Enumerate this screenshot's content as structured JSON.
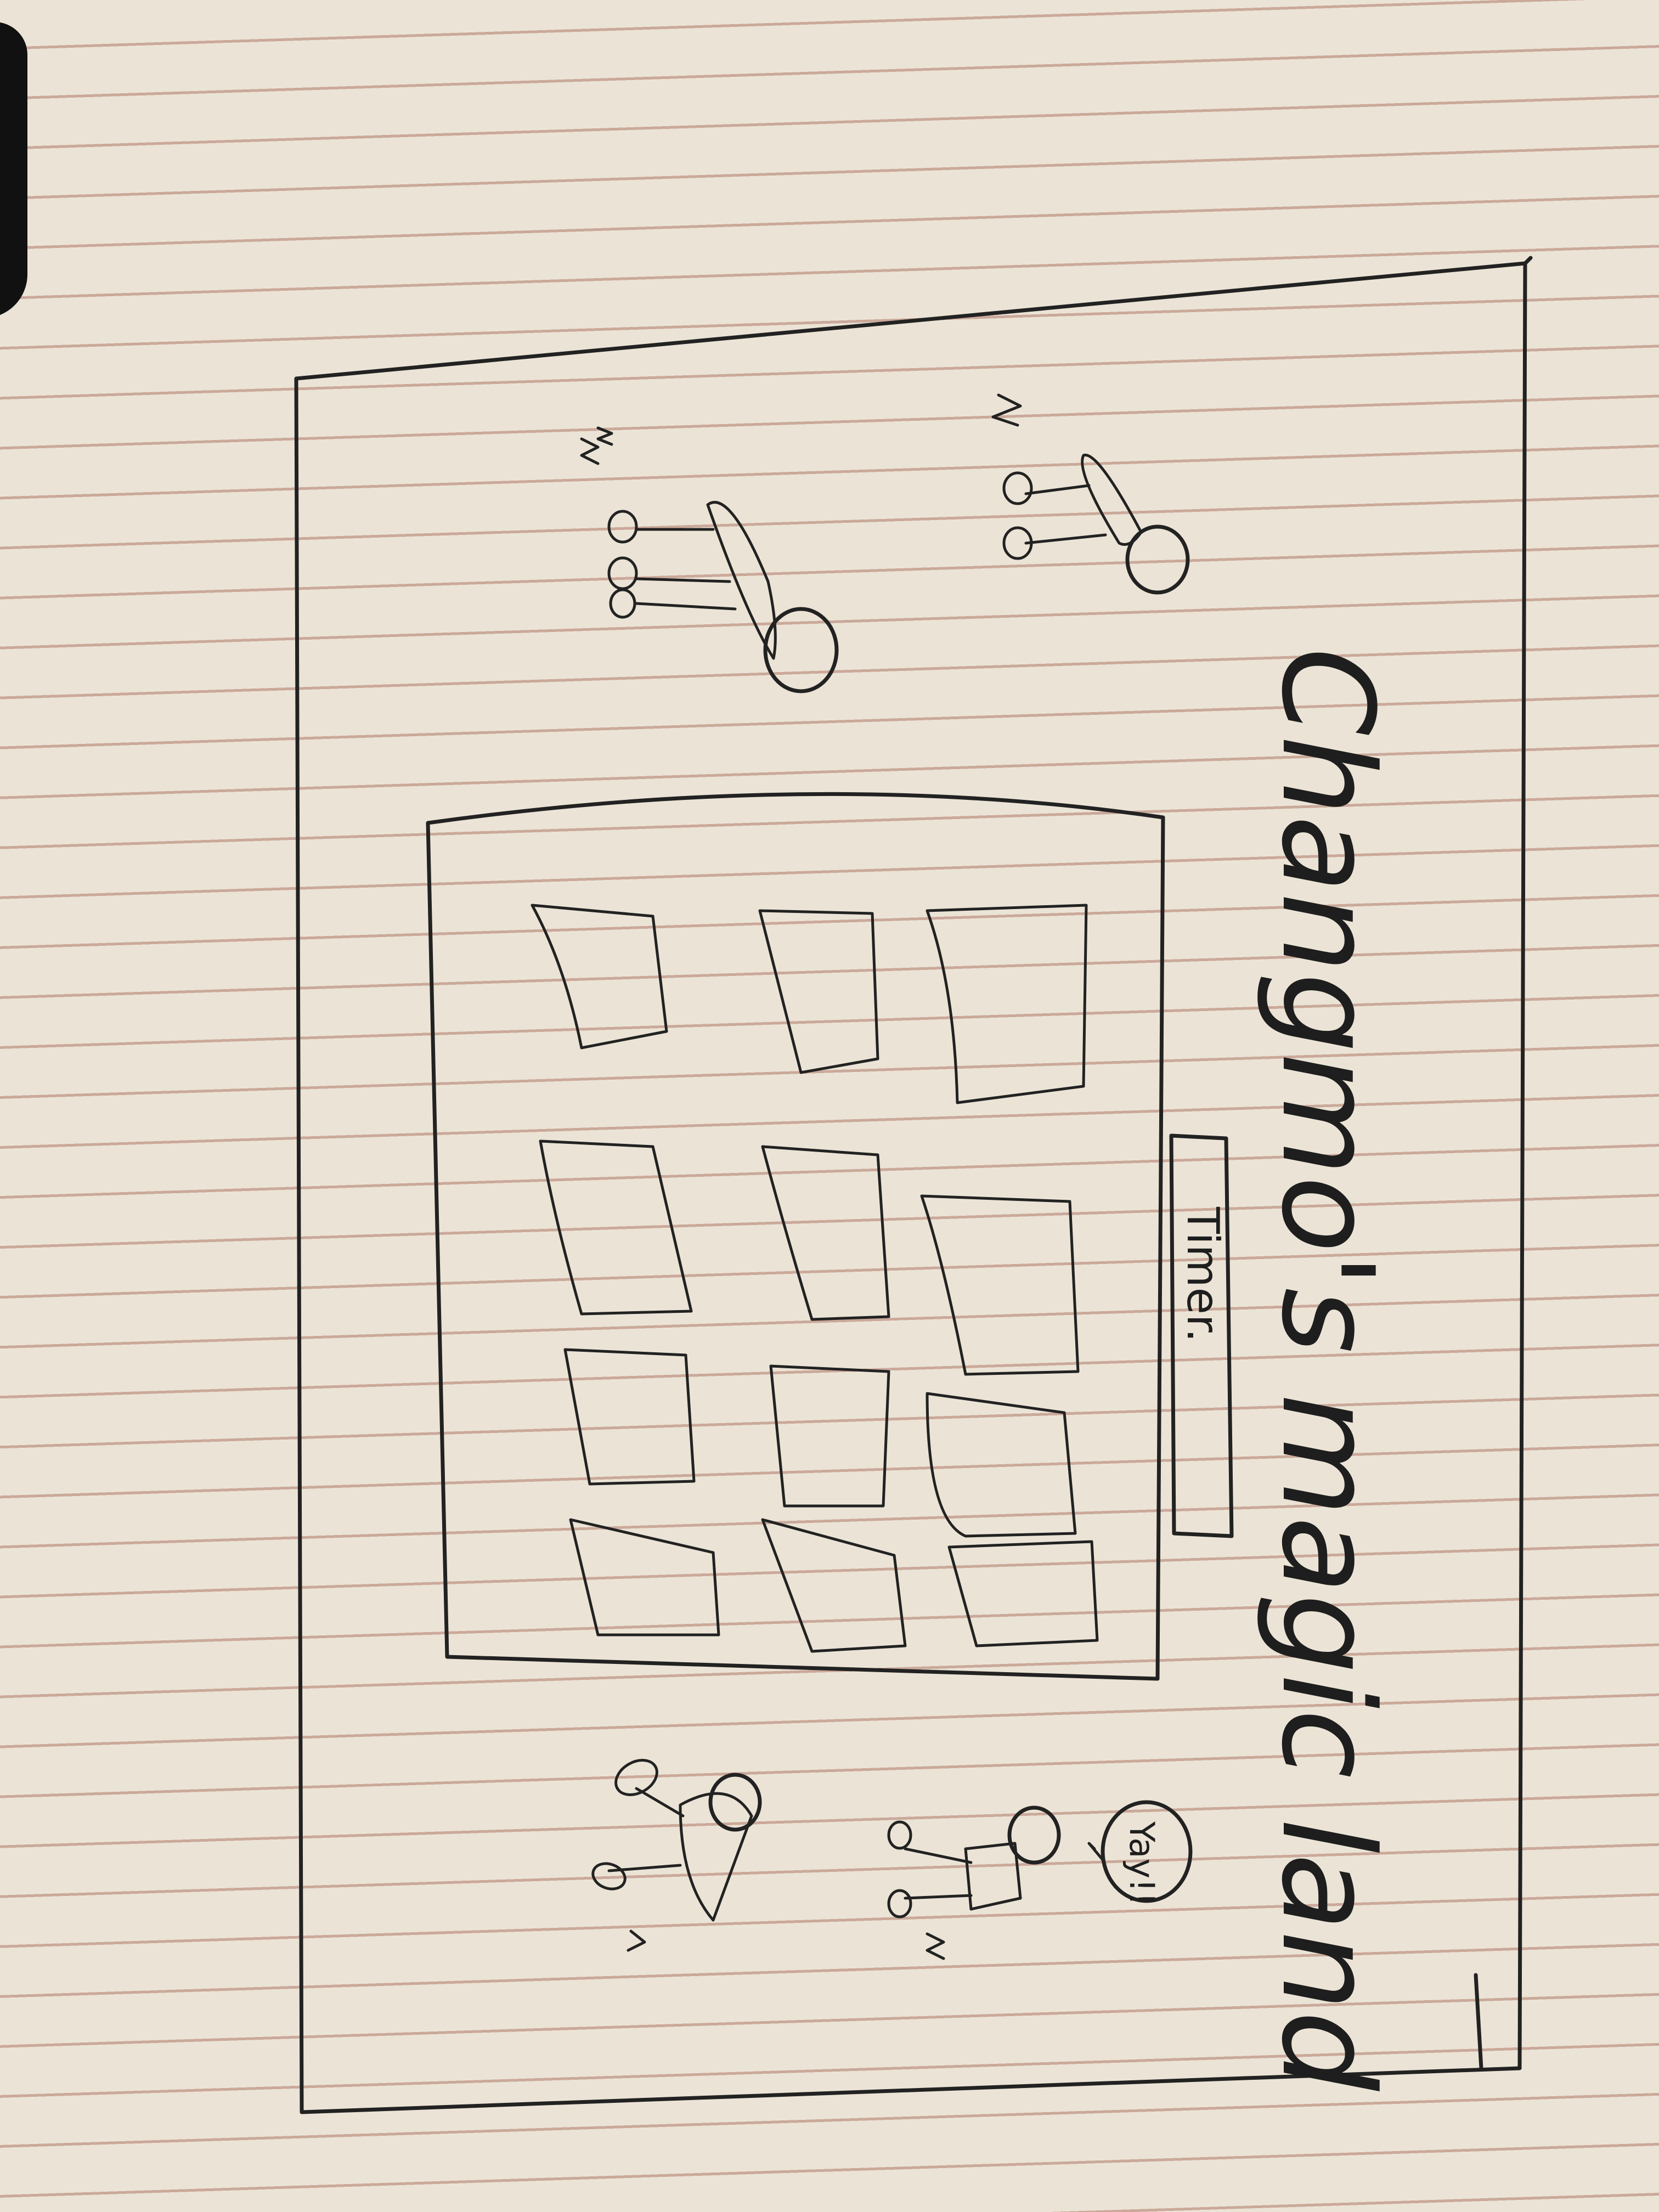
{
  "sketch": {
    "title": "Changmo's magic land",
    "timer_label": "Timer.",
    "speech_bubble": "Yay!!",
    "card_grid": {
      "rows": 3,
      "columns": 4
    },
    "figures": {
      "left_sleeping_zzz": [
        "z",
        "zz"
      ],
      "right_walking_marks": [
        "~",
        "~"
      ]
    },
    "colors": {
      "paper": "#ebe4d6",
      "rule_lines": "#b07868",
      "ink": "#222222"
    }
  }
}
